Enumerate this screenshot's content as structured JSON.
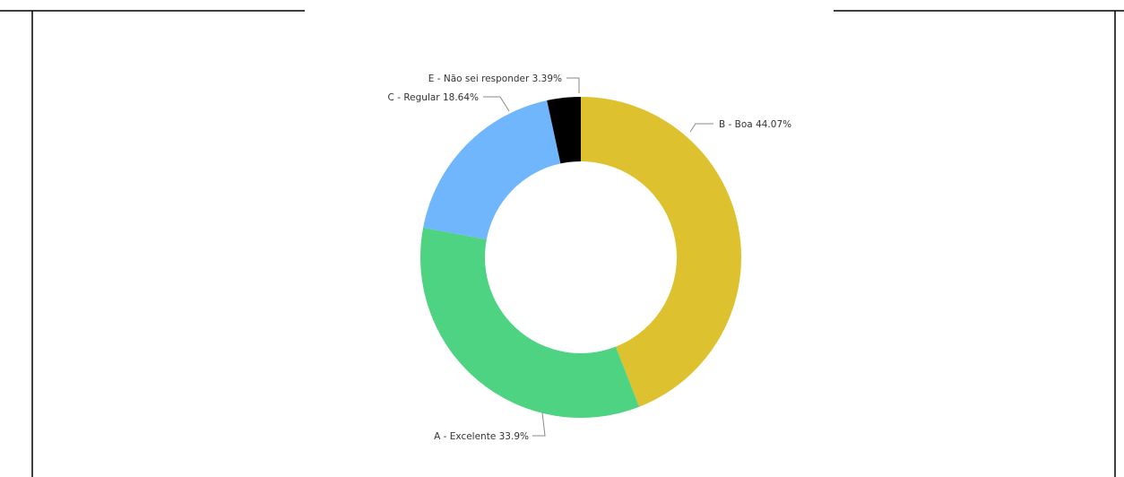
{
  "chart_data": {
    "type": "pie",
    "donut": true,
    "legend": "none",
    "slices": [
      {
        "label": "B - Boa",
        "value": 44.07,
        "value_text": "44.07%",
        "color": "#DEC12F"
      },
      {
        "label": "A - Excelente",
        "value": 33.9,
        "value_text": "33.9%",
        "color": "#4DD381"
      },
      {
        "label": "C - Regular",
        "value": 18.64,
        "value_text": "18.64%",
        "color": "#6FB6FC"
      },
      {
        "label": "E - Não sei responder",
        "value": 3.39,
        "value_text": "3.39%",
        "color": "#000000"
      }
    ]
  }
}
